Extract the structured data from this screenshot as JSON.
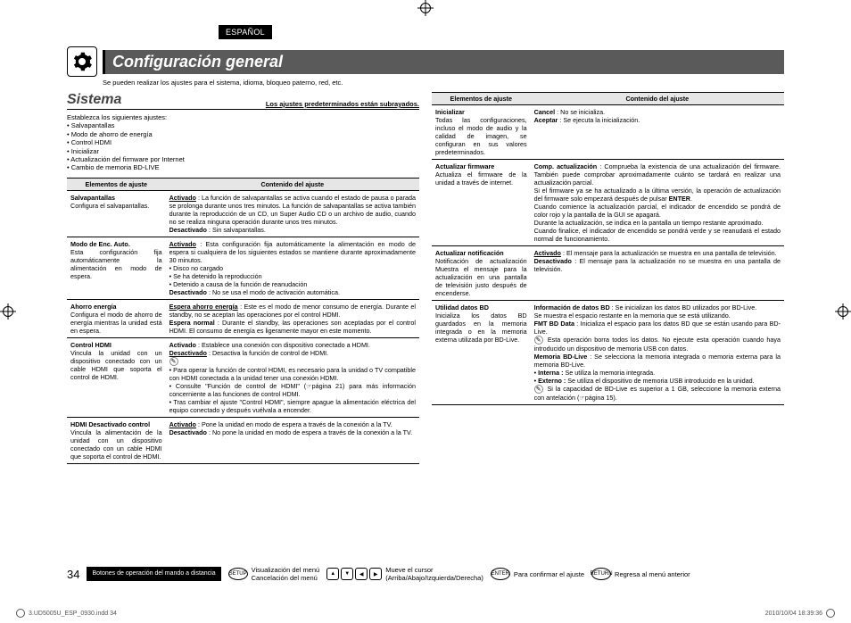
{
  "lang_tag": "ESPAÑOL",
  "header": {
    "title": "Configuración general",
    "subtitle": "Se pueden realizar los ajustes para el sistema, idioma, bloqueo paterno, red, etc."
  },
  "section": {
    "title": "Sistema",
    "note": "Los ajustes predeterminados están subrayados."
  },
  "intro": {
    "lead": "Establezca los siguientes ajustes:",
    "items": [
      "Salvapantallas",
      "Modo de ahorro de energía",
      "Control HDMI",
      "Inicializar",
      "Actualización del firmware por Internet",
      "Cambio de memoria BD-LIVE"
    ]
  },
  "table_head": {
    "col1": "Elementos de ajuste",
    "col2": "Contenido del ajuste"
  },
  "left_rows": [
    {
      "label": "Salvapantallas",
      "desc": "Configura el salvapantallas.",
      "content": "<b><u>Activado</u></b> : La función de salvapantallas se activa cuando el estado de pausa o parada se prolonga durante unos tres minutos. La función de salvapantallas se activa también durante la reproducción de un CD, un Super Audio CD o un archivo de audio, cuando no se realiza ninguna operación durante unos tres minutos.<br><b>Desactivado</b> : Sin salvapantallas."
    },
    {
      "label": "Modo de Enc. Auto.",
      "desc": "Esta configuración fija automáticamente la alimentación en modo de espera.",
      "content": "<b><u>Activado</u></b> : Esta configuración fija automáticamente la alimentación en modo de espera si cualquiera de los siguientes estados se mantiene durante aproximadamente 30 minutos.<br>• Disco no cargado<br>• Se ha detenido la reproducción<br>• Detenido a causa de la función de reanudación<br><b>Desactivado</b> : No se usa el modo de activación automática."
    },
    {
      "label": "Ahorro energía",
      "desc": "Configura el modo de ahorro de energía mientras la unidad está en espera.",
      "content": "<b><u>Espera ahorro energía</u></b> : Este es el modo de menor consumo de energía. Durante el standby, no se aceptan las operaciones por el control HDMI.<br><b>Espera normal</b> : Durante el standby, las operaciones son aceptadas por el control HDMI. El consumo de energía es ligeramente mayor en este momento."
    },
    {
      "label": "Control HDMI",
      "desc": "Vincula la unidad con un dispositivo conectado con un cable HDMI que soporta el control de HDMI.",
      "content": "<b>Activado</b> : Establece una conexión con dispositivo conectado a HDMI.<br><b><u>Desactivado</u></b> : Desactiva la función de control de HDMI.<br><span class='hand'>✎</span><br>• Para operar la función de control HDMI, es necesario para la unidad o TV compatible con HDMI conectada a la unidad tener una conexión HDMI.<br>• Consulte \"Función de control de HDMI\" (☞página 21) para más información concerniente a las funciones de control HDMI.<br>• Tras cambiar el ajuste \"Control HDMI\", siempre apague la alimentación eléctrica del equipo conectado y después vuélvala a encender."
    },
    {
      "label": "HDMI Desactivado control",
      "desc": "Vincula la alimentación de la unidad con un dispositivo conectado con un cable HDMI que soporta el control de HDMI.",
      "content": "<b><u>Activado</u></b> : Pone la unidad en modo de espera a través de la conexión a la TV.<br><b>Desactivado</b> : No pone la unidad en modo de espera a través de la conexión a la TV."
    }
  ],
  "right_rows": [
    {
      "label": "Inicializar",
      "desc": "Todas las configuraciones, incluso el modo de audio y la calidad de imagen, se configuran en sus valores predeterminados.",
      "content": "<b>Cancel</b> : No se inicializa.<br><b>Aceptar</b> : Se ejecuta la inicialización."
    },
    {
      "label": "Actualizar firmware",
      "desc": "Actualiza el firmware de la unidad a través de internet.",
      "content": "<b>Comp. actualización</b> : Comprueba la existencia de una actualización del firmware. También puede comprobar aproximadamente cuánto se tardará en realizar una actualización parcial.<br>Si el firmware ya se ha actualizado a la última versión, la operación de actualización del firmware solo empezará después de pulsar <b>ENTER</b>.<br>Cuando comience la actualización parcial, el indicador de encendido se pondrá de color rojo y la pantalla de la GUI se apagará.<br>Durante la actualización, se indica en la pantalla un tiempo restante aproximado.<br>Cuando finalice, el indicador de encendido se pondrá verde y se reanudará el estado normal de funcionamiento."
    },
    {
      "label": "Actualizar notificación",
      "desc": "Notificación de actualización Muestra el mensaje para la actualización en una pantalla de televisión justo después de encenderse.",
      "content": "<b><u>Activado</u></b> : El mensaje para la actualización se muestra en una pantalla de televisión.<br><b>Desactivado</b> : El mensaje para la actualización no se muestra en una pantalla de televisión."
    },
    {
      "label": "Utilidad datos BD",
      "desc": "Inicializa los datos BD guardados en la memoria integrada o en la memoria externa utilizada por BD-Live.",
      "content": "<b>Información de datos BD</b> : Se inicializan los datos BD utilizados por BD-Live.<br>Se muestra el espacio restante en la memoria que se está utilizando.<br><b>FMT BD Data</b> : Inicializa el espacio para los datos BD que se están usando para BD-Live.<br><span class='hand'>✎</span> Esta operación borra todos los datos. No ejecute esta operación cuando haya introducido un dispositivo de memoria USB con datos.<br><b>Memoria BD-Live</b> : Se selecciona la memoria integrada o memoria externa para la memoria BD-Live.<br>• <b>Interna :</b> Se utiliza la memoria integrada.<br>• <b>Externo :</b> Se utiliza el dispositivo de memoria USB introducido en la unidad.<br><span class='hand'>✎</span> Si la capacidad de BD-Live es superior a 1 GB, seleccione la memoria externa con antelación (☞página 15)."
    }
  ],
  "footer": {
    "page_num": "34",
    "remote_label": "Botones de operación del mando a distancia",
    "setup": {
      "icon": "SETUP",
      "line1": "Visualización del menú",
      "line2": "Cancelación del menú"
    },
    "cursor": {
      "line1": "Mueve el cursor",
      "line2": "(Arriba/Abajo/Izquierda/Derecha)"
    },
    "enter": {
      "icon": "ENTER",
      "text": "Para confirmar el ajuste"
    },
    "return": {
      "icon": "RETURN",
      "text": "Regresa al menú anterior"
    }
  },
  "imprint": {
    "file": "3.UD5005U_ESP_0930.indd   34",
    "stamp": "2010/10/04   18:39:36"
  }
}
